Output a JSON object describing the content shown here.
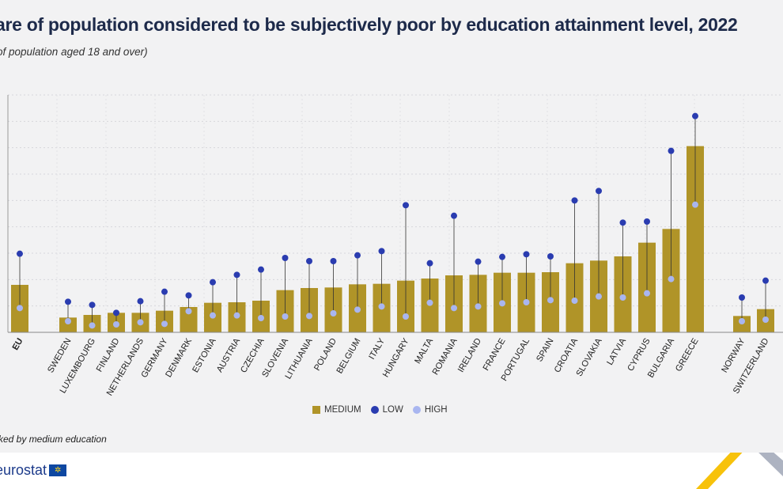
{
  "colors": {
    "medium": "#b09428",
    "low": "#2a3cb0",
    "high": "#a9b6f0",
    "grid": "#d6d6dc",
    "stem": "#333333"
  },
  "header": {
    "title": "are of population considered to be subjectively poor by education attainment level, 2022",
    "subtitle": "of population aged 18 and over)"
  },
  "note": "ked by medium education",
  "logo": {
    "text": "eurostat",
    "flag_icon": "eu-flag-icon"
  },
  "chart_data": {
    "type": "bar",
    "ylim": [
      0,
      45
    ],
    "categories": [
      "EU",
      "SWEDEN",
      "LUXEMBOURG",
      "FINLAND",
      "NETHERLANDS",
      "GERMANY",
      "DENMARK",
      "ESTONIA",
      "AUSTRIA",
      "CZECHIA",
      "SLOVENIA",
      "LITHUANIA",
      "POLAND",
      "BELGIUM",
      "ITALY",
      "HUNGARY",
      "MALTA",
      "ROMANIA",
      "IRELAND",
      "FRANCE",
      "PORTUGAL",
      "SPAIN",
      "CROATIA",
      "SLOVAKIA",
      "LATVIA",
      "CYPRUS",
      "BULGARIA",
      "GREECE",
      "NORWAY",
      "SWITZERLAND"
    ],
    "groups": [
      [
        0,
        0
      ],
      [
        1,
        27
      ],
      [
        28,
        29
      ]
    ],
    "series": [
      {
        "name": "MEDIUM",
        "values": [
          9.0,
          2.8,
          3.3,
          3.7,
          3.7,
          4.1,
          4.8,
          5.6,
          5.7,
          6.0,
          8.0,
          8.4,
          8.5,
          9.1,
          9.2,
          9.8,
          10.2,
          10.8,
          10.9,
          11.3,
          11.3,
          11.4,
          13.1,
          13.6,
          14.4,
          17.0,
          19.6,
          35.3,
          3.1,
          4.4
        ]
      },
      {
        "name": "LOW",
        "values": [
          14.9,
          5.8,
          5.2,
          3.7,
          5.9,
          7.7,
          7.0,
          9.5,
          10.9,
          11.9,
          14.1,
          13.5,
          13.5,
          14.6,
          15.4,
          24.1,
          13.1,
          22.1,
          13.4,
          14.3,
          14.8,
          14.4,
          25.0,
          26.8,
          20.8,
          21.0,
          34.4,
          41.0,
          6.6,
          9.8
        ]
      },
      {
        "name": "HIGH",
        "values": [
          4.6,
          2.1,
          1.3,
          1.5,
          1.9,
          1.6,
          4.0,
          3.2,
          3.2,
          2.7,
          3.0,
          3.1,
          3.6,
          4.3,
          4.9,
          3.0,
          5.6,
          4.6,
          4.9,
          5.5,
          5.7,
          6.1,
          6.0,
          6.8,
          6.6,
          7.4,
          10.1,
          24.2,
          2.1,
          2.4
        ]
      }
    ]
  },
  "legend": {
    "medium": "MEDIUM",
    "low": "LOW",
    "high": "HIGH"
  }
}
